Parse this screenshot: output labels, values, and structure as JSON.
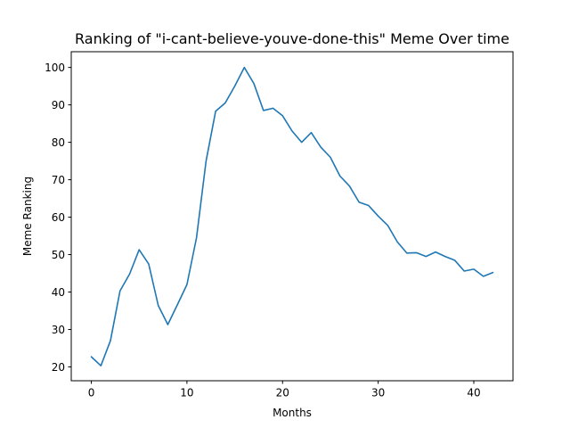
{
  "chart_data": {
    "type": "line",
    "title": "Ranking of \"i-cant-believe-youve-done-this\" Meme Over time",
    "xlabel": "Months",
    "ylabel": "Meme Ranking",
    "xlim": [
      -2.1,
      44.1
    ],
    "ylim": [
      16.3,
      104.2
    ],
    "xticks": [
      0,
      10,
      20,
      30,
      40
    ],
    "yticks": [
      20,
      30,
      40,
      50,
      60,
      70,
      80,
      90,
      100
    ],
    "grid": false,
    "series": [
      {
        "color": "#1f77b4",
        "x": [
          0,
          1,
          2,
          3,
          4,
          5,
          6,
          7,
          8,
          9,
          10,
          11,
          12,
          13,
          14,
          15,
          16,
          17,
          18,
          19,
          20,
          21,
          22,
          23,
          24,
          25,
          26,
          27,
          28,
          29,
          30,
          31,
          32,
          33,
          34,
          35,
          36,
          37,
          38,
          39,
          40,
          41,
          42
        ],
        "y": [
          22.7,
          20.3,
          27.0,
          40.3,
          44.8,
          51.3,
          47.5,
          36.4,
          31.3,
          36.6,
          42.0,
          54.5,
          75.0,
          88.3,
          90.5,
          95.0,
          100.0,
          95.7,
          88.5,
          89.1,
          87.1,
          83.0,
          80.0,
          82.6,
          78.7,
          76.0,
          71.0,
          68.3,
          64.0,
          63.1,
          60.3,
          57.8,
          53.4,
          50.4,
          50.5,
          49.5,
          50.7,
          49.5,
          48.5,
          45.6,
          46.1,
          44.2,
          45.2
        ]
      }
    ]
  }
}
